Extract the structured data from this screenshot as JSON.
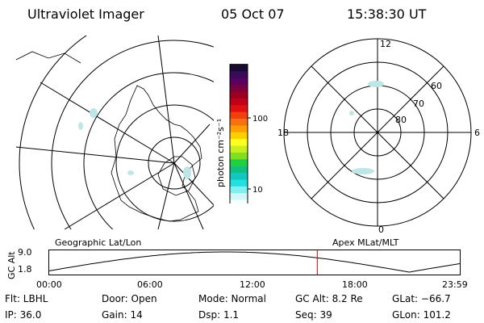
{
  "header": {
    "title": "Ultraviolet Imager",
    "date": "05 Oct 07",
    "time": "15:38:30 UT"
  },
  "left_panel": {
    "caption": "Geographic Lat/Lon"
  },
  "colorbar": {
    "unit_label": "photon cm⁻²s⁻¹",
    "ticks": [
      "100",
      "10"
    ],
    "colors": [
      "#1a0a33",
      "#3a0a5a",
      "#5a0060",
      "#7a0040",
      "#9c0020",
      "#c00018",
      "#e01010",
      "#f04010",
      "#f87010",
      "#ffa000",
      "#ffd000",
      "#ffff20",
      "#c8f020",
      "#80e020",
      "#20d040",
      "#10c080",
      "#10c8c0",
      "#20e0e0",
      "#80f0f0",
      "#d0f8f8",
      "#f8ffff"
    ]
  },
  "right_panel": {
    "caption": "Apex MLat/MLT",
    "mlt_labels": {
      "top": "12",
      "bottom": "0",
      "left": "18",
      "right": "6"
    },
    "mlat_labels": [
      "60",
      "70",
      "80"
    ]
  },
  "altitude_plot": {
    "ylabel": "GC Alt",
    "y_ticks": [
      "9.0",
      "1.8"
    ],
    "x_ticks": [
      "00:00",
      "06:00",
      "12:00",
      "18:00",
      "23:59"
    ],
    "current_marker_hour": 15.64
  },
  "status": {
    "filter": "Flt: LBHL",
    "ip": "IP: 36.0",
    "door": "Door: Open",
    "gain": "Gain: 14",
    "mode": "Mode: Normal",
    "dsp": "Dsp:     1.1",
    "gc_alt": "GC Alt: 8.2 Re",
    "seq": "Seq: 39",
    "glat": "GLat: −66.7",
    "glon": "GLon: 101.2"
  }
}
